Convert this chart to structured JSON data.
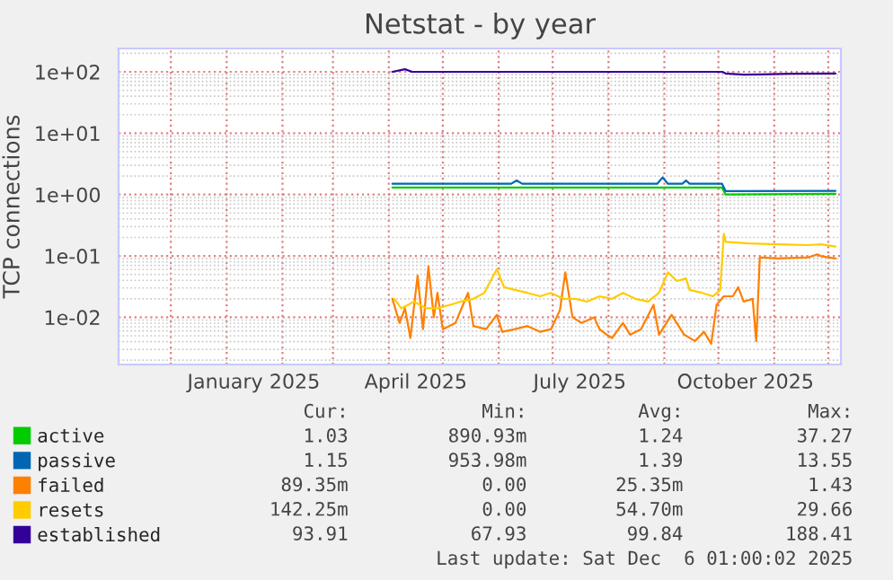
{
  "chart_data": {
    "type": "line",
    "title": "Netstat - by year",
    "ylabel": "TCP connections",
    "log": true,
    "grid": true,
    "legend": "bottom",
    "xlim": [
      "2024-11-02",
      "2025-12-08"
    ],
    "xticks": [
      {
        "value": "2024-12-01",
        "label": null
      },
      {
        "value": "2025-01-01",
        "label": null
      },
      {
        "value": "2025-01-16",
        "label": "January 2025"
      },
      {
        "value": "2025-02-01",
        "label": null
      },
      {
        "value": "2025-03-01",
        "label": null
      },
      {
        "value": "2025-04-01",
        "label": null
      },
      {
        "value": "2025-04-16",
        "label": "April 2025"
      },
      {
        "value": "2025-05-01",
        "label": null
      },
      {
        "value": "2025-06-01",
        "label": null
      },
      {
        "value": "2025-07-01",
        "label": null
      },
      {
        "value": "2025-07-16",
        "label": "July 2025"
      },
      {
        "value": "2025-08-01",
        "label": null
      },
      {
        "value": "2025-09-01",
        "label": null
      },
      {
        "value": "2025-10-01",
        "label": null
      },
      {
        "value": "2025-10-16",
        "label": "October 2025"
      },
      {
        "value": "2025-11-01",
        "label": null
      },
      {
        "value": "2025-12-01",
        "label": null
      }
    ],
    "ylim": [
      0.0017,
      240
    ],
    "yticks": [
      {
        "value": 0.01,
        "label": "1e-02"
      },
      {
        "value": 0.1,
        "label": "1e-01"
      },
      {
        "value": 1,
        "label": "1e+00"
      },
      {
        "value": 10,
        "label": "1e+01"
      },
      {
        "value": 100,
        "label": "1e+02"
      }
    ],
    "series": [
      {
        "name": "active",
        "color": "#00cc00",
        "x": [
          "2025-04-03",
          "2025-10-03",
          "2025-10-05",
          "2025-12-05"
        ],
        "values": [
          1.3,
          1.3,
          1.0,
          1.03
        ]
      },
      {
        "name": "passive",
        "color": "#0066b3",
        "x": [
          "2025-04-03",
          "2025-06-08",
          "2025-06-11",
          "2025-06-14",
          "2025-08-28",
          "2025-08-31",
          "2025-09-03",
          "2025-09-11",
          "2025-09-13",
          "2025-09-15",
          "2025-10-03",
          "2025-10-05",
          "2025-12-05"
        ],
        "values": [
          1.5,
          1.5,
          1.7,
          1.5,
          1.5,
          1.9,
          1.5,
          1.5,
          1.7,
          1.5,
          1.5,
          1.14,
          1.15
        ]
      },
      {
        "name": "failed",
        "color": "#ff8000",
        "x": [
          "2025-04-03",
          "2025-04-07",
          "2025-04-10",
          "2025-04-13",
          "2025-04-17",
          "2025-04-20",
          "2025-04-23",
          "2025-04-26",
          "2025-04-28",
          "2025-05-01",
          "2025-05-08",
          "2025-05-15",
          "2025-05-18",
          "2025-05-25",
          "2025-05-31",
          "2025-06-03",
          "2025-06-10",
          "2025-06-17",
          "2025-06-24",
          "2025-06-30",
          "2025-07-05",
          "2025-07-08",
          "2025-07-12",
          "2025-07-17",
          "2025-07-24",
          "2025-07-27",
          "2025-07-31",
          "2025-08-03",
          "2025-08-09",
          "2025-08-13",
          "2025-08-19",
          "2025-08-26",
          "2025-08-29",
          "2025-09-05",
          "2025-09-12",
          "2025-09-18",
          "2025-09-23",
          "2025-09-27",
          "2025-09-30",
          "2025-10-04",
          "2025-10-09",
          "2025-10-12",
          "2025-10-15",
          "2025-10-20",
          "2025-10-22",
          "2025-10-24",
          "2025-11-03",
          "2025-11-20",
          "2025-11-25",
          "2025-11-27",
          "2025-12-05"
        ],
        "values": [
          0.02,
          0.0081,
          0.014,
          0.0046,
          0.048,
          0.0064,
          0.068,
          0.01,
          0.025,
          0.0064,
          0.0081,
          0.025,
          0.0072,
          0.0064,
          0.011,
          0.0058,
          0.0064,
          0.0072,
          0.0058,
          0.0064,
          0.013,
          0.054,
          0.01,
          0.0081,
          0.01,
          0.0064,
          0.0052,
          0.0046,
          0.0081,
          0.0052,
          0.0064,
          0.016,
          0.0052,
          0.011,
          0.0052,
          0.0041,
          0.0058,
          0.0037,
          0.016,
          0.022,
          0.022,
          0.031,
          0.018,
          0.02,
          0.0041,
          0.095,
          0.091,
          0.095,
          0.106,
          0.099,
          0.091
        ]
      },
      {
        "name": "resets",
        "color": "#ffcc00",
        "x": [
          "2025-04-04",
          "2025-04-08",
          "2025-04-15",
          "2025-04-22",
          "2025-04-28",
          "2025-05-05",
          "2025-05-11",
          "2025-05-18",
          "2025-05-24",
          "2025-05-31",
          "2025-06-04",
          "2025-06-10",
          "2025-06-17",
          "2025-06-24",
          "2025-06-30",
          "2025-07-07",
          "2025-07-14",
          "2025-07-20",
          "2025-07-27",
          "2025-08-03",
          "2025-08-09",
          "2025-08-16",
          "2025-08-23",
          "2025-08-29",
          "2025-09-03",
          "2025-09-08",
          "2025-09-13",
          "2025-09-15",
          "2025-09-22",
          "2025-09-28",
          "2025-10-02",
          "2025-10-04",
          "2025-10-05",
          "2025-10-18",
          "2025-11-03",
          "2025-11-20",
          "2025-11-27",
          "2025-12-05"
        ],
        "values": [
          0.02,
          0.014,
          0.018,
          0.014,
          0.014,
          0.016,
          0.018,
          0.02,
          0.025,
          0.061,
          0.031,
          0.028,
          0.025,
          0.022,
          0.025,
          0.02,
          0.02,
          0.018,
          0.022,
          0.02,
          0.025,
          0.02,
          0.018,
          0.025,
          0.054,
          0.039,
          0.043,
          0.028,
          0.025,
          0.022,
          0.028,
          0.23,
          0.17,
          0.16,
          0.155,
          0.15,
          0.155,
          0.142
        ]
      },
      {
        "name": "established",
        "color": "#330099",
        "x": [
          "2025-04-03",
          "2025-04-10",
          "2025-04-14",
          "2025-10-03",
          "2025-10-05",
          "2025-10-15",
          "2025-10-25",
          "2025-11-10",
          "2025-12-05"
        ],
        "values": [
          100,
          110,
          100,
          100,
          94,
          90,
          91,
          93,
          94
        ]
      }
    ],
    "annotations": [
      "Cur:",
      "Min:",
      "Avg:",
      "Max:",
      "1.03",
      "890.93m",
      "1.24",
      "37.27",
      "1.15",
      "953.98m",
      "1.39",
      "13.55",
      "89.35m",
      "0.00",
      "25.35m",
      "1.43",
      "142.25m",
      "0.00",
      "54.70m",
      "29.66",
      "93.91",
      "67.93",
      "99.84",
      "188.41",
      "Last update: Sat Dec  6 01:00:02 2025"
    ]
  }
}
